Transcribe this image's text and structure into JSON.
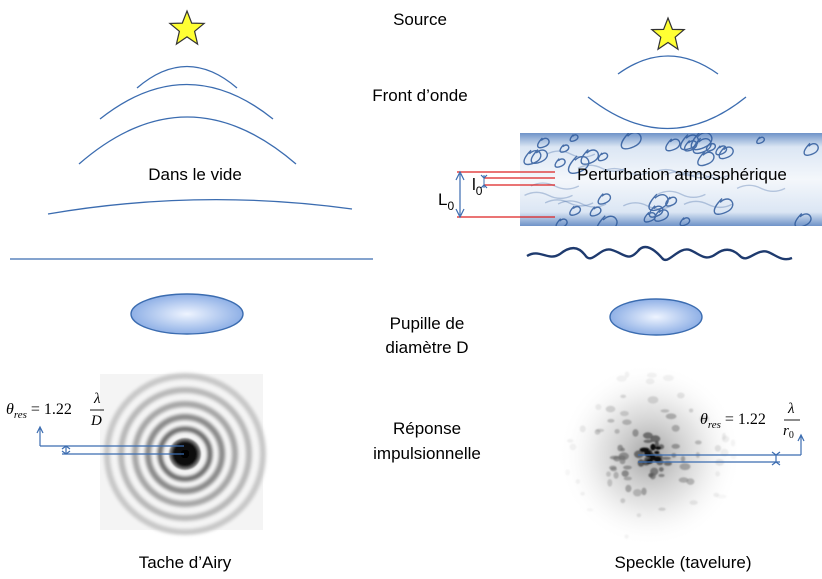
{
  "labels": {
    "source": "Source",
    "wavefront": "Front d’onde",
    "vacuum": "Dans le vide",
    "perturbation": "Perturbation atmosphérique",
    "pupil_line1": "Pupille de",
    "pupil_line2": "diamètre D",
    "response_line1": "Réponse",
    "response_line2": "impulsionnelle",
    "airy": "Tache d’Airy",
    "speckle": "Speckle (tavelure)"
  },
  "scales": {
    "L": "L",
    "l": "l",
    "subscript": "0"
  },
  "formulas": {
    "left": {
      "theta": "θ",
      "sub": "res",
      "eq": " = 1.22",
      "num": "λ",
      "den": "D"
    },
    "right": {
      "theta": "θ",
      "sub": "res",
      "eq": " = 1.22",
      "num": "λ",
      "den": "r",
      "den_sub": "0"
    }
  },
  "colors": {
    "wave": "#3b6cb0",
    "star_fill": "#ffff33",
    "star_stroke": "#333333",
    "pupil_center": "#eef4ff",
    "pupil_edge": "#8fb0e6",
    "pupil_stroke": "#3b6cb0",
    "red_line": "#dd2222",
    "turbulence_dark": "#2e5a9c",
    "arrow": "#3b6cb0"
  }
}
